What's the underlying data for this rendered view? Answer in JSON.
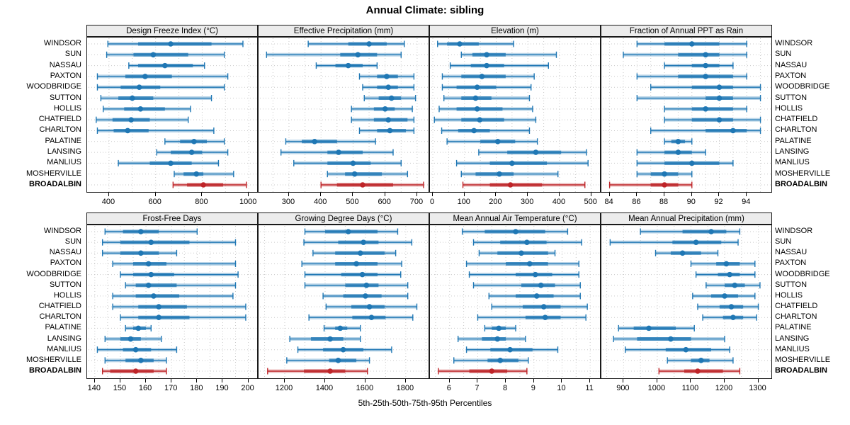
{
  "chart_data": {
    "type": "dotplot-intervals",
    "title": "Annual Climate: sibling",
    "caption": "5th-25th-50th-75th-95th Percentiles",
    "percentiles": [
      5,
      25,
      50,
      75,
      95
    ],
    "layout": {
      "rows": 2,
      "cols": 4,
      "grid": "dotted",
      "legend_position": "none",
      "row_labels_sides": [
        "left",
        "right"
      ]
    },
    "colors": {
      "series": "#1F77B4",
      "highlight": "#BE2428",
      "strip_bg": "#ECECEC",
      "grid": "#C9C9C9",
      "border": "#1A1A1A"
    },
    "locations": [
      "WINDSOR",
      "SUN",
      "NASSAU",
      "PAXTON",
      "WOODBRIDGE",
      "SUTTON",
      "HOLLIS",
      "CHATFIELD",
      "CHARLTON",
      "PALATINE",
      "LANSING",
      "MANLIUS",
      "MOSHERVILLE",
      "BROADALBIN"
    ],
    "highlight_location": "BROADALBIN",
    "panels": [
      {
        "title": "Design Freeze Index (°C)",
        "row": 0,
        "col": 0,
        "ticks": [
          400,
          600,
          800,
          1000
        ],
        "range": [
          306,
          1042
        ],
        "grid_step": 100,
        "series": {
          "WINDSOR": [
            395,
            525,
            665,
            840,
            975
          ],
          "SUN": [
            390,
            505,
            590,
            740,
            895
          ],
          "NASSAU": [
            485,
            525,
            640,
            760,
            810
          ],
          "PAXTON": [
            350,
            470,
            555,
            670,
            910
          ],
          "WOODBRIDGE": [
            350,
            450,
            530,
            620,
            895
          ],
          "SUTTON": [
            365,
            440,
            500,
            590,
            840
          ],
          "HOLLIS": [
            375,
            465,
            535,
            640,
            750
          ],
          "CHATFIELD": [
            345,
            415,
            495,
            575,
            740
          ],
          "CHARLTON": [
            350,
            420,
            480,
            570,
            850
          ],
          "PALATINE": [
            640,
            705,
            765,
            820,
            895
          ],
          "LANSING": [
            605,
            665,
            755,
            800,
            910
          ],
          "MANLIUS": [
            440,
            575,
            665,
            755,
            870
          ],
          "MOSHERVILLE": [
            680,
            720,
            775,
            805,
            935
          ],
          "BROADALBIN": [
            675,
            735,
            805,
            890,
            990
          ]
        }
      },
      {
        "title": "Effective Precipitation (mm)",
        "row": 0,
        "col": 1,
        "ticks": [
          300,
          400,
          500,
          600,
          700
        ],
        "range": [
          205,
          740
        ],
        "grid_step": 50,
        "series": {
          "WINDSOR": [
            360,
            485,
            550,
            605,
            660
          ],
          "SUN": [
            230,
            460,
            515,
            575,
            650
          ],
          "NASSAU": [
            385,
            445,
            485,
            530,
            575
          ],
          "PAXTON": [
            520,
            575,
            605,
            640,
            690
          ],
          "WOODBRIDGE": [
            530,
            575,
            610,
            640,
            690
          ],
          "SUTTON": [
            535,
            580,
            620,
            650,
            695
          ],
          "HOLLIS": [
            495,
            565,
            600,
            630,
            685
          ],
          "CHATFIELD": [
            495,
            565,
            610,
            670,
            690
          ],
          "CHARLTON": [
            520,
            575,
            615,
            665,
            690
          ],
          "PALATINE": [
            290,
            340,
            380,
            450,
            570
          ],
          "LANSING": [
            275,
            420,
            455,
            530,
            625
          ],
          "MANLIUS": [
            315,
            420,
            500,
            555,
            650
          ],
          "MOSHERVILLE": [
            420,
            475,
            505,
            590,
            670
          ],
          "BROADALBIN": [
            400,
            450,
            530,
            625,
            720
          ]
        }
      },
      {
        "title": "Elevation (m)",
        "row": 0,
        "col": 2,
        "ticks": [
          0,
          100,
          200,
          300,
          400,
          500
        ],
        "range": [
          -9,
          532
        ],
        "grid_step": 50,
        "series": {
          "WINDSOR": [
            15,
            45,
            85,
            145,
            255
          ],
          "SUN": [
            90,
            125,
            170,
            230,
            390
          ],
          "NASSAU": [
            55,
            120,
            170,
            225,
            365
          ],
          "PAXTON": [
            30,
            90,
            155,
            230,
            320
          ],
          "WOODBRIDGE": [
            30,
            75,
            140,
            200,
            310
          ],
          "SUTTON": [
            35,
            90,
            135,
            185,
            305
          ],
          "HOLLIS": [
            20,
            75,
            140,
            220,
            315
          ],
          "CHATFIELD": [
            5,
            90,
            148,
            225,
            325
          ],
          "CHARLTON": [
            28,
            80,
            130,
            180,
            305
          ],
          "PALATINE": [
            45,
            150,
            205,
            260,
            330
          ],
          "LANSING": [
            145,
            235,
            325,
            405,
            485
          ],
          "MANLIUS": [
            75,
            180,
            250,
            360,
            490
          ],
          "MOSHERVILLE": [
            90,
            135,
            210,
            255,
            395
          ],
          "BROADALBIN": [
            95,
            180,
            245,
            345,
            480
          ]
        }
      },
      {
        "title": "Fraction of Annual PPT as Rain",
        "row": 0,
        "col": 3,
        "ticks": [
          84,
          86,
          88,
          90,
          92,
          94
        ],
        "range": [
          83.4,
          95.9
        ],
        "grid_step": 1,
        "series": {
          "WINDSOR": [
            86,
            88,
            90,
            92,
            94
          ],
          "SUN": [
            85,
            89,
            91,
            92,
            94
          ],
          "NASSAU": [
            88,
            90,
            91,
            92,
            93
          ],
          "PAXTON": [
            86,
            89,
            91,
            93,
            94
          ],
          "WOODBRIDGE": [
            87,
            90,
            92,
            93,
            95
          ],
          "SUTTON": [
            86,
            91,
            92,
            93,
            95
          ],
          "HOLLIS": [
            88,
            90,
            91,
            93,
            94
          ],
          "CHATFIELD": [
            88,
            90,
            92,
            93,
            95
          ],
          "CHARLTON": [
            87,
            91,
            93,
            94,
            95
          ],
          "PALATINE": [
            88,
            88.5,
            89,
            89.5,
            90
          ],
          "LANSING": [
            86,
            88,
            89,
            90,
            91
          ],
          "MANLIUS": [
            86,
            88,
            90,
            92,
            93
          ],
          "MOSHERVILLE": [
            86,
            87,
            88,
            89,
            90
          ],
          "BROADALBIN": [
            84,
            87,
            88,
            89,
            90
          ]
        }
      },
      {
        "title": "Frost-Free Days",
        "row": 1,
        "col": 0,
        "ticks": [
          140,
          150,
          160,
          170,
          180,
          190,
          200
        ],
        "range": [
          137,
          204
        ],
        "grid_step": 5,
        "series": {
          "WINDSOR": [
            144,
            151,
            158,
            165,
            180
          ],
          "SUN": [
            143,
            150,
            162,
            177,
            195
          ],
          "NASSAU": [
            143,
            150,
            158,
            165,
            172
          ],
          "PAXTON": [
            147,
            155,
            161,
            168,
            195
          ],
          "WOODBRIDGE": [
            150,
            155,
            162,
            171,
            196
          ],
          "SUTTON": [
            152,
            156,
            161,
            172,
            195
          ],
          "HOLLIS": [
            147,
            156,
            163,
            173,
            194
          ],
          "CHATFIELD": [
            147,
            157,
            165,
            176,
            199
          ],
          "CHARLTON": [
            150,
            157,
            165,
            177,
            199
          ],
          "PALATINE": [
            152,
            155,
            157,
            160,
            162
          ],
          "LANSING": [
            144,
            150,
            154,
            158,
            166
          ],
          "MANLIUS": [
            141,
            151,
            156,
            162,
            172
          ],
          "MOSHERVILLE": [
            144,
            152,
            158,
            163,
            168
          ],
          "BROADALBIN": [
            143,
            146,
            156,
            163,
            168
          ]
        }
      },
      {
        "title": "Growing Degree Days (°C)",
        "row": 1,
        "col": 1,
        "ticks": [
          1200,
          1400,
          1600,
          1800
        ],
        "range": [
          1070,
          1920
        ],
        "grid_step": 100,
        "series": {
          "WINDSOR": [
            1300,
            1400,
            1515,
            1660,
            1760
          ],
          "SUN": [
            1295,
            1465,
            1590,
            1665,
            1830
          ],
          "NASSAU": [
            1340,
            1450,
            1575,
            1695,
            1750
          ],
          "PAXTON": [
            1285,
            1450,
            1555,
            1660,
            1780
          ],
          "WOODBRIDGE": [
            1300,
            1480,
            1585,
            1660,
            1775
          ],
          "SUTTON": [
            1300,
            1500,
            1605,
            1665,
            1810
          ],
          "HOLLIS": [
            1390,
            1490,
            1600,
            1680,
            1810
          ],
          "CHATFIELD": [
            1405,
            1530,
            1620,
            1695,
            1855
          ],
          "CHARLTON": [
            1320,
            1535,
            1630,
            1700,
            1835
          ],
          "PALATINE": [
            1395,
            1450,
            1475,
            1510,
            1575
          ],
          "LANSING": [
            1225,
            1330,
            1425,
            1490,
            1575
          ],
          "MANLIUS": [
            1265,
            1390,
            1490,
            1590,
            1730
          ],
          "MOSHERVILLE": [
            1210,
            1420,
            1465,
            1555,
            1620
          ],
          "BROADALBIN": [
            1115,
            1295,
            1425,
            1500,
            1610
          ]
        }
      },
      {
        "title": "Mean Annual Air Temperature (°C)",
        "row": 1,
        "col": 2,
        "ticks": [
          6,
          7,
          8,
          9,
          10,
          11
        ],
        "range": [
          5.3,
          11.4
        ],
        "grid_step": 0.5,
        "series": {
          "WINDSOR": [
            6.45,
            7.25,
            8.35,
            9.4,
            10.2
          ],
          "SUN": [
            6.85,
            7.8,
            8.75,
            9.45,
            10.7
          ],
          "NASSAU": [
            7.05,
            7.7,
            8.55,
            9.5,
            9.75
          ],
          "PAXTON": [
            6.6,
            8.0,
            8.85,
            9.5,
            10.6
          ],
          "WOODBRIDGE": [
            6.7,
            8.35,
            9.05,
            9.65,
            10.6
          ],
          "SUTTON": [
            6.85,
            8.55,
            9.25,
            9.75,
            10.65
          ],
          "HOLLIS": [
            7.4,
            8.35,
            9.1,
            9.7,
            10.65
          ],
          "CHATFIELD": [
            7.5,
            8.6,
            9.35,
            9.95,
            10.9
          ],
          "CHARLTON": [
            7.0,
            8.7,
            9.4,
            9.95,
            10.85
          ],
          "PALATINE": [
            7.25,
            7.5,
            7.75,
            8.0,
            8.35
          ],
          "LANSING": [
            6.3,
            7.15,
            7.7,
            8.0,
            8.7
          ],
          "MANLIUS": [
            6.6,
            7.45,
            8.15,
            8.95,
            9.85
          ],
          "MOSHERVILLE": [
            6.15,
            7.35,
            7.8,
            8.45,
            8.8
          ],
          "BROADALBIN": [
            5.6,
            6.7,
            7.5,
            8.05,
            8.75
          ]
        }
      },
      {
        "title": "Mean Annual Precipitation (mm)",
        "row": 1,
        "col": 3,
        "ticks": [
          900,
          1000,
          1100,
          1200,
          1300
        ],
        "range": [
          834,
          1343
        ],
        "grid_step": 50,
        "series": {
          "WINDSOR": [
            950,
            1075,
            1160,
            1205,
            1245
          ],
          "SUN": [
            860,
            1045,
            1115,
            1190,
            1240
          ],
          "NASSAU": [
            995,
            1040,
            1075,
            1130,
            1180
          ],
          "PAXTON": [
            1100,
            1175,
            1205,
            1245,
            1290
          ],
          "WOODBRIDGE": [
            1115,
            1180,
            1215,
            1245,
            1290
          ],
          "SUTTON": [
            1145,
            1200,
            1230,
            1260,
            1305
          ],
          "HOLLIS": [
            1105,
            1160,
            1200,
            1240,
            1290
          ],
          "CHATFIELD": [
            1120,
            1185,
            1220,
            1255,
            1300
          ],
          "CHARLTON": [
            1135,
            1195,
            1225,
            1255,
            1295
          ],
          "PALATINE": [
            885,
            930,
            975,
            1055,
            1110
          ],
          "LANSING": [
            870,
            940,
            1040,
            1100,
            1200
          ],
          "MANLIUS": [
            905,
            1025,
            1085,
            1160,
            1215
          ],
          "MOSHERVILLE": [
            1030,
            1100,
            1130,
            1155,
            1225
          ],
          "BROADALBIN": [
            1005,
            1080,
            1120,
            1195,
            1245
          ]
        }
      }
    ]
  }
}
